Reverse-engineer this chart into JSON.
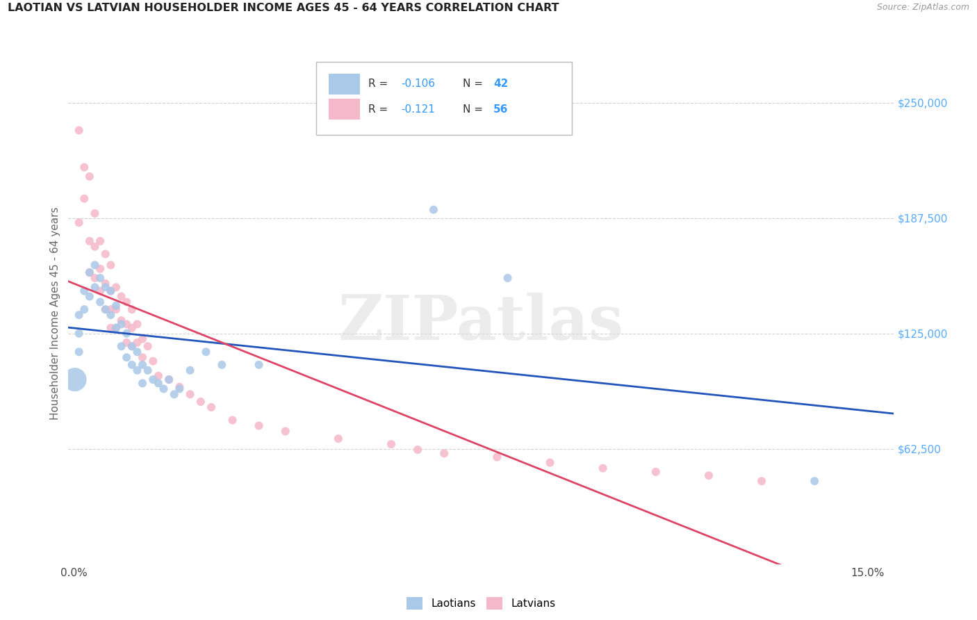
{
  "title": "LAOTIAN VS LATVIAN HOUSEHOLDER INCOME AGES 45 - 64 YEARS CORRELATION CHART",
  "source": "Source: ZipAtlas.com",
  "ylabel": "Householder Income Ages 45 - 64 years",
  "ytick_labels": [
    "$62,500",
    "$125,000",
    "$187,500",
    "$250,000"
  ],
  "ytick_values": [
    62500,
    125000,
    187500,
    250000
  ],
  "ymin": 0,
  "ymax": 272000,
  "xmin": -0.001,
  "xmax": 0.155,
  "background_color": "#ffffff",
  "grid_color": "#cccccc",
  "blue_color": "#aac8e8",
  "pink_color": "#f5b8c8",
  "blue_line_color": "#2255bb",
  "pink_line_color": "#dd4466",
  "title_color": "#222222",
  "source_color": "#999999",
  "axis_tick_color": "#55aaff",
  "axis_label_color": "#666666",
  "watermark": "ZIPatlas",
  "watermark_color": "#dddddd",
  "laotian_x": [
    0.0002,
    0.001,
    0.001,
    0.001,
    0.002,
    0.002,
    0.003,
    0.003,
    0.004,
    0.004,
    0.005,
    0.005,
    0.006,
    0.006,
    0.007,
    0.007,
    0.008,
    0.008,
    0.009,
    0.009,
    0.01,
    0.01,
    0.011,
    0.011,
    0.012,
    0.012,
    0.013,
    0.013,
    0.014,
    0.015,
    0.016,
    0.017,
    0.018,
    0.019,
    0.02,
    0.022,
    0.025,
    0.028,
    0.035,
    0.068,
    0.082,
    0.14
  ],
  "laotian_y": [
    100000,
    135000,
    125000,
    115000,
    148000,
    138000,
    158000,
    145000,
    162000,
    150000,
    155000,
    142000,
    150000,
    138000,
    148000,
    135000,
    140000,
    128000,
    130000,
    118000,
    125000,
    112000,
    118000,
    108000,
    115000,
    105000,
    108000,
    98000,
    105000,
    100000,
    98000,
    95000,
    100000,
    92000,
    95000,
    105000,
    115000,
    108000,
    108000,
    192000,
    155000,
    45000
  ],
  "latvian_x": [
    0.001,
    0.001,
    0.002,
    0.002,
    0.003,
    0.003,
    0.003,
    0.004,
    0.004,
    0.004,
    0.005,
    0.005,
    0.005,
    0.006,
    0.006,
    0.006,
    0.007,
    0.007,
    0.007,
    0.007,
    0.008,
    0.008,
    0.008,
    0.009,
    0.009,
    0.01,
    0.01,
    0.01,
    0.011,
    0.011,
    0.011,
    0.012,
    0.012,
    0.013,
    0.013,
    0.014,
    0.015,
    0.016,
    0.018,
    0.02,
    0.022,
    0.024,
    0.026,
    0.03,
    0.035,
    0.04,
    0.05,
    0.06,
    0.065,
    0.07,
    0.08,
    0.09,
    0.1,
    0.11,
    0.12,
    0.13
  ],
  "latvian_y": [
    235000,
    185000,
    215000,
    198000,
    210000,
    175000,
    158000,
    190000,
    172000,
    155000,
    175000,
    160000,
    148000,
    168000,
    152000,
    138000,
    162000,
    148000,
    138000,
    128000,
    150000,
    138000,
    128000,
    145000,
    132000,
    142000,
    130000,
    120000,
    138000,
    128000,
    118000,
    130000,
    120000,
    122000,
    112000,
    118000,
    110000,
    102000,
    100000,
    96000,
    92000,
    88000,
    85000,
    78000,
    75000,
    72000,
    68000,
    65000,
    62000,
    60000,
    58000,
    55000,
    52000,
    50000,
    48000,
    45000
  ]
}
